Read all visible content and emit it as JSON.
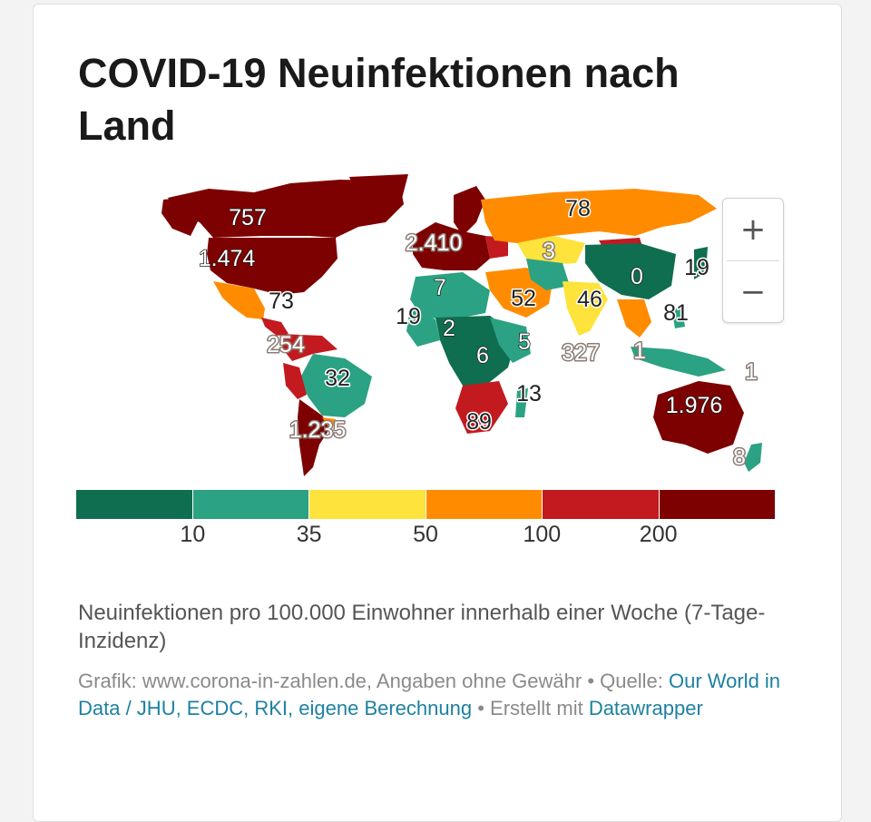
{
  "title": "COVID-19 Neuinfektionen nach Land",
  "zoom": {
    "in_label": "+",
    "out_label": "−"
  },
  "legend": {
    "colors": [
      "#0f6e50",
      "#2aa283",
      "#fde33b",
      "#ff8c00",
      "#c21a1f",
      "#7d0101"
    ],
    "ticks": [
      "10",
      "35",
      "50",
      "100",
      "200"
    ]
  },
  "description": "Neuinfektionen pro 100.000 Einwohner innerhalb einer Woche (7-Tage-Inzidenz)",
  "source": {
    "prefix": "Grafik: www.corona-in-zahlen.de, Angaben ohne Gewähr • Quelle: ",
    "link": "Our World in Data / JHU, ECDC, RKI, eigene Berechnung",
    "suffix": " • Erstellt mit ",
    "tool": "Datawrapper"
  },
  "labels": [
    {
      "text": "757",
      "style": "dark"
    },
    {
      "text": "1.474",
      "style": "dark"
    },
    {
      "text": "73",
      "style": "light"
    },
    {
      "text": "254",
      "style": "outline"
    },
    {
      "text": "32",
      "style": "light"
    },
    {
      "text": "1.235",
      "style": "outline"
    },
    {
      "text": "2.410",
      "style": "outline"
    },
    {
      "text": "78",
      "style": "light"
    },
    {
      "text": "3",
      "style": "outline"
    },
    {
      "text": "0",
      "style": "dark"
    },
    {
      "text": "19",
      "style": "light"
    },
    {
      "text": "7",
      "style": "dark"
    },
    {
      "text": "52",
      "style": "light"
    },
    {
      "text": "46",
      "style": "light"
    },
    {
      "text": "81",
      "style": "light"
    },
    {
      "text": "19",
      "style": "light"
    },
    {
      "text": "2",
      "style": "dark"
    },
    {
      "text": "5",
      "style": "dark"
    },
    {
      "text": "6",
      "style": "dark"
    },
    {
      "text": "327",
      "style": "outline"
    },
    {
      "text": "1",
      "style": "outline"
    },
    {
      "text": "1",
      "style": "outline"
    },
    {
      "text": "13",
      "style": "light"
    },
    {
      "text": "89",
      "style": "light"
    },
    {
      "text": "1.976",
      "style": "dark"
    },
    {
      "text": "8",
      "style": "outline"
    }
  ]
}
